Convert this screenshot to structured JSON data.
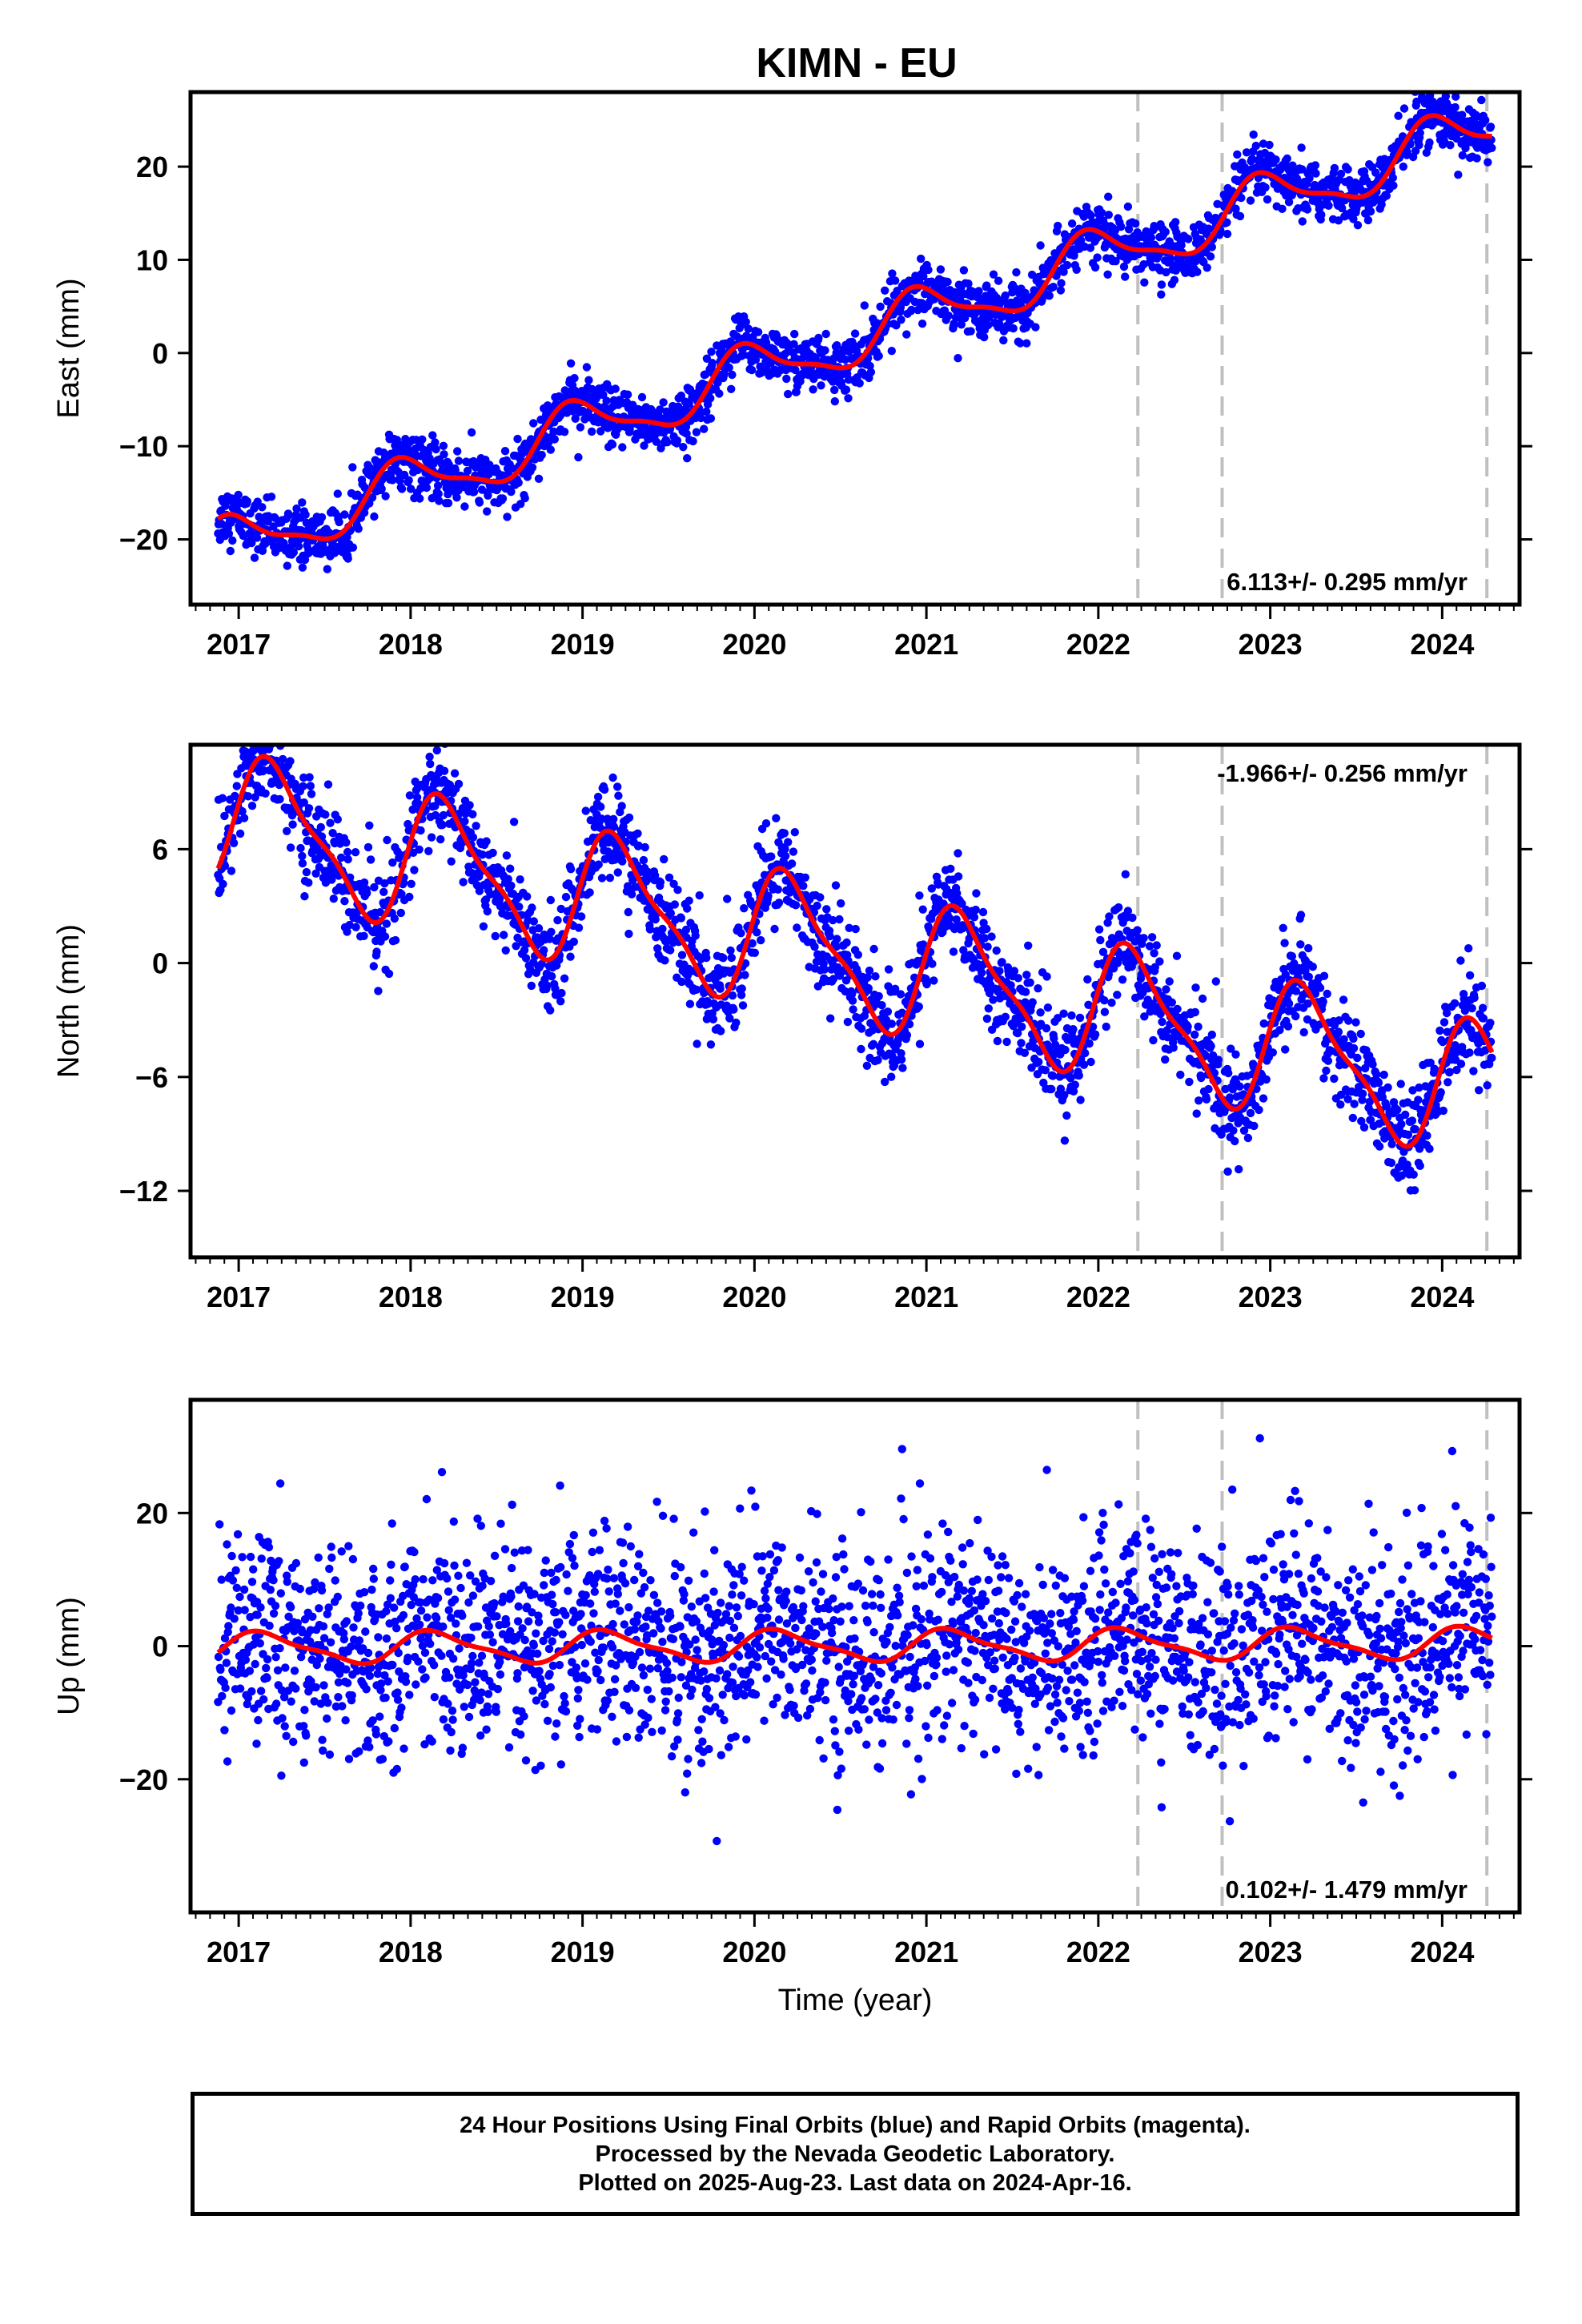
{
  "title": "KIMN - EU",
  "footer": {
    "line1": "24 Hour Positions Using Final Orbits (blue) and Rapid Orbits (magenta).",
    "line2": "Processed by the Nevada Geodetic Laboratory.",
    "line3": "Plotted on 2025-Aug-23. Last data on 2024-Apr-16."
  },
  "colors": {
    "points": "#0000ff",
    "fit": "#ff0000",
    "event_lines": "#c0c0c0"
  },
  "chart_data": [
    {
      "type": "scatter",
      "component": "east",
      "ylabel": "East (mm)",
      "xlabel": "",
      "xlim": [
        2016.72,
        2024.45
      ],
      "ylim": [
        -27,
        28
      ],
      "yticks": [
        -20,
        -10,
        0,
        10,
        20
      ],
      "xticks": [
        2017,
        2018,
        2019,
        2020,
        2021,
        2022,
        2023,
        2024
      ],
      "event_lines": [
        2022.23,
        2022.72,
        2024.26
      ],
      "rate_label": "6.113+/- 0.295 mm/yr",
      "rate_label_position": "bottom-right",
      "model": {
        "rate": 6.113,
        "offset_at_2020": -2.0,
        "annual_amplitude": 2.8,
        "annual_phase": 1.8,
        "scatter_sigma": 1.5
      },
      "data_span": [
        2016.88,
        2024.29
      ]
    },
    {
      "type": "scatter",
      "component": "north",
      "ylabel": "North (mm)",
      "xlabel": "",
      "xlim": [
        2016.72,
        2024.45
      ],
      "ylim": [
        -15.5,
        11.5
      ],
      "yticks": [
        -12,
        -6,
        0,
        6
      ],
      "xticks": [
        2017,
        2018,
        2019,
        2020,
        2021,
        2022,
        2023,
        2024
      ],
      "event_lines": [
        2022.23,
        2022.72,
        2024.26
      ],
      "rate_label": "-1.966+/- 0.256 mm/yr",
      "rate_label_position": "top-right",
      "model": {
        "rate": -1.966,
        "offset_at_2020": 1.5,
        "annual_amplitude": 3.3,
        "annual_phase": 0.2,
        "scatter_sigma": 1.3
      },
      "data_span": [
        2016.88,
        2024.29
      ]
    },
    {
      "type": "scatter",
      "component": "up",
      "ylabel": "Up (mm)",
      "xlabel": "Time (year)",
      "xlim": [
        2016.72,
        2024.45
      ],
      "ylim": [
        -40,
        37
      ],
      "yticks": [
        -20,
        0,
        20
      ],
      "xticks": [
        2017,
        2018,
        2019,
        2020,
        2021,
        2022,
        2023,
        2024
      ],
      "event_lines": [
        2022.23,
        2022.72,
        2024.26
      ],
      "rate_label": "0.102+/- 1.479 mm/yr",
      "rate_label_position": "bottom-right",
      "model": {
        "rate": 0.102,
        "offset_at_2020": 0.0,
        "annual_amplitude": 2.2,
        "annual_phase": 0.6,
        "scatter_sigma": 8.0
      },
      "data_span": [
        2016.88,
        2024.29
      ]
    }
  ]
}
